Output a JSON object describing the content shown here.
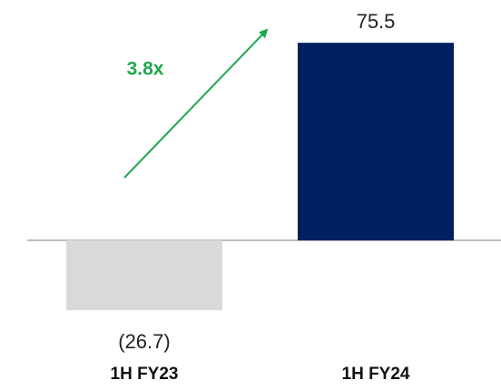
{
  "chart_data": {
    "type": "bar",
    "categories": [
      "1H FY23",
      "1H FY24"
    ],
    "values": [
      -26.7,
      75.5
    ],
    "value_labels": [
      "(26.7)",
      "75.5"
    ],
    "colors": [
      "#d9d9d9",
      "#002060"
    ],
    "annotation": "3.8x",
    "annotation_color": "#1fa84f"
  }
}
